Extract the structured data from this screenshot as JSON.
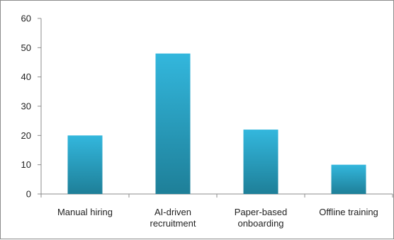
{
  "chart_data": {
    "type": "bar",
    "title": "",
    "xlabel": "",
    "ylabel": "",
    "categories": [
      [
        "Manual hiring"
      ],
      [
        "AI-driven",
        "recruitment"
      ],
      [
        "Paper-based",
        "onboarding"
      ],
      [
        "Offline training"
      ]
    ],
    "values": [
      20,
      48,
      22,
      10
    ],
    "ylim": [
      0,
      60
    ],
    "yticks": [
      0,
      10,
      20,
      30,
      40,
      50,
      60
    ],
    "grid": false,
    "legend": "none",
    "colors": {
      "bar_top": "#33b7dd",
      "bar_bottom": "#1e7f98",
      "axis": "#8c8c8c",
      "frame": "#8c8c8c"
    }
  }
}
